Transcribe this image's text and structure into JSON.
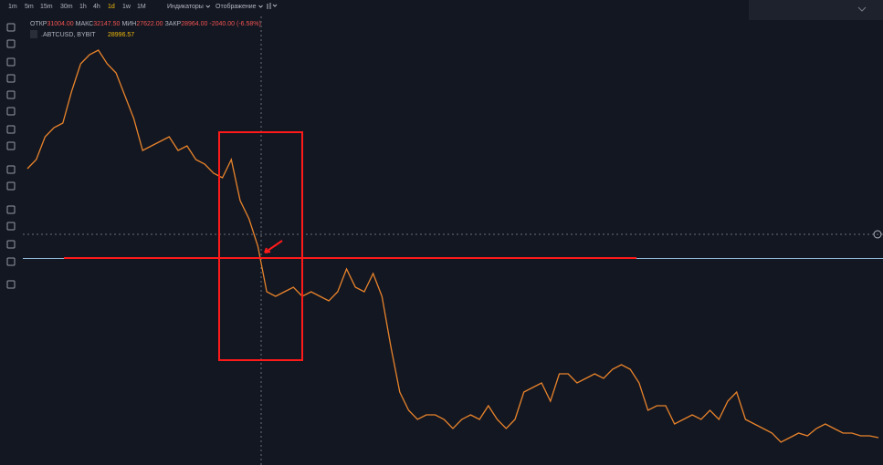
{
  "toolbar": {
    "timeframes": [
      "1m",
      "5m",
      "15m",
      "30m",
      "1h",
      "4h",
      "1d",
      "1w",
      "1M"
    ],
    "active_timeframe": "1d",
    "menus": [
      "Индикаторы",
      "Отображение"
    ]
  },
  "legend": {
    "ohlc": [
      {
        "label": "ОТКР",
        "value": "31004.00"
      },
      {
        "label": "МАКС",
        "value": "32147.50"
      },
      {
        "label": "МИН",
        "value": "27622.00"
      },
      {
        "label": "ЗАКР",
        "value": "28964.00"
      }
    ],
    "change": "-2040.00 (-6.58%)",
    "symbol": ".ABTCUSD, BYBIT",
    "price": "28996.57"
  },
  "chart_data": {
    "type": "line",
    "color": "#e8832a",
    "ylim": [
      20000,
      68000
    ],
    "values": [
      52500,
      53500,
      56000,
      57000,
      57500,
      61000,
      64000,
      65000,
      65500,
      64000,
      63000,
      60500,
      58000,
      54500,
      55000,
      55500,
      56000,
      54500,
      55000,
      53500,
      53000,
      52000,
      51500,
      53500,
      49000,
      47000,
      44000,
      39000,
      38500,
      39000,
      39500,
      38500,
      39000,
      38500,
      38000,
      39000,
      41500,
      39500,
      39000,
      41000,
      38500,
      33000,
      28000,
      26000,
      25000,
      25500,
      25500,
      25000,
      24000,
      25000,
      25500,
      25000,
      26500,
      25000,
      24000,
      25000,
      28000,
      28500,
      29000,
      27000,
      30000,
      30000,
      29000,
      29500,
      30000,
      29500,
      30500,
      31000,
      30500,
      29000,
      26000,
      26500,
      26500,
      24500,
      25000,
      25500,
      25000,
      26000,
      25000,
      27000,
      28000,
      25000,
      24500,
      24000,
      23500,
      22500,
      23000,
      23500,
      23200,
      24000,
      24500,
      24000,
      23500,
      23500,
      23200,
      23200,
      23000
    ]
  }
}
